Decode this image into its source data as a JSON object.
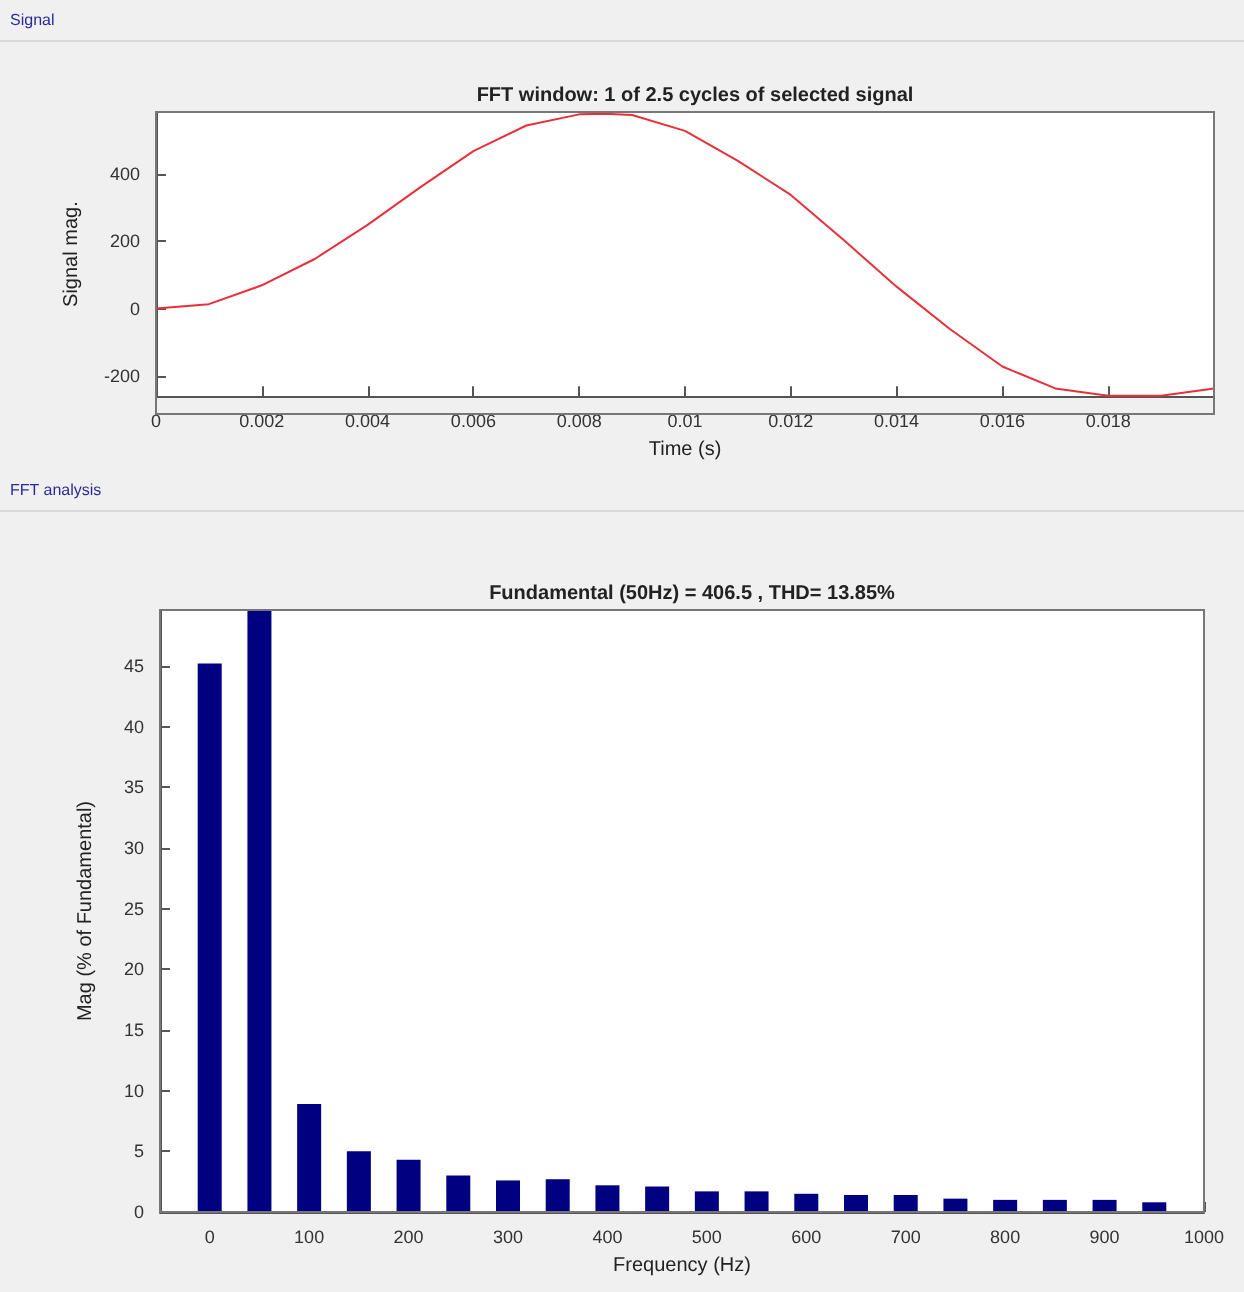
{
  "chart_data": [
    {
      "type": "line",
      "title": "FFT window: 1 of 2.5 cycles of selected signal",
      "xlabel": "Time (s)",
      "ylabel": "Signal mag.",
      "annotations": [
        "Signal"
      ],
      "series": [
        {
          "color": "#e8303a",
          "x": [
            0,
            0.001,
            0.002,
            0.003,
            0.004,
            0.005,
            0.006,
            0.007,
            0.008,
            0.0085,
            0.009,
            0.01,
            0.011,
            0.012,
            0.013,
            0.014,
            0.015,
            0.016,
            0.017,
            0.018,
            0.019,
            0.02
          ],
          "values": [
            0,
            13,
            69,
            147,
            248,
            360,
            467,
            543,
            576,
            578,
            574,
            527,
            438,
            337,
            203,
            65,
            -60,
            -172,
            -237,
            -259,
            -259,
            -237
          ]
        }
      ],
      "xlim": [
        0,
        0.02
      ],
      "xticks": [
        0,
        0.002,
        0.004,
        0.006,
        0.008,
        0.01,
        0.012,
        0.014,
        0.016,
        0.018
      ],
      "ylim": [
        -260,
        583
      ],
      "yticks": [
        -200,
        0,
        200,
        400
      ],
      "grid": false,
      "marker": "none",
      "line_style": "solid"
    },
    {
      "type": "bar",
      "title": "Fundamental (50Hz) = 406.5 , THD= 13.85%",
      "xlabel": "Frequency (Hz)",
      "ylabel": "Mag (% of Fundamental)",
      "annotations": [
        "FFT analysis"
      ],
      "x": [
        0,
        50,
        100,
        150,
        200,
        250,
        300,
        350,
        400,
        450,
        500,
        550,
        600,
        650,
        700,
        750,
        800,
        850,
        900,
        950
      ],
      "series": [
        {
          "color": "#000080",
          "values": [
            45.2,
            49.6,
            8.9,
            5.0,
            4.3,
            3.0,
            2.6,
            2.7,
            2.2,
            2.1,
            1.7,
            1.7,
            1.5,
            1.4,
            1.4,
            1.1,
            1.0,
            1.0,
            1.0,
            0.8
          ]
        }
      ],
      "xlim": [
        -50,
        1000
      ],
      "xticks": [
        0,
        100,
        200,
        300,
        400,
        500,
        600,
        700,
        800,
        900,
        1000
      ],
      "ylim": [
        0,
        49.6
      ],
      "yticks": [
        0,
        5,
        10,
        15,
        20,
        25,
        30,
        35,
        40,
        45
      ],
      "grid": false
    }
  ]
}
